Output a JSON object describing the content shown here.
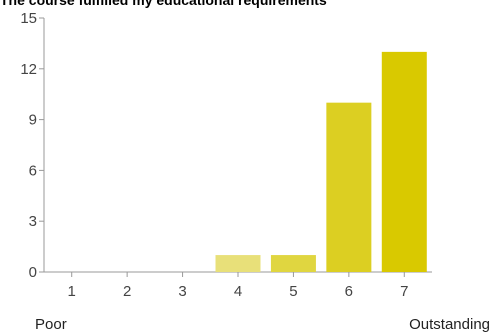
{
  "chart_data": {
    "type": "bar",
    "title": "The course fulfilled my educational requirements",
    "categories": [
      "1",
      "2",
      "3",
      "4",
      "5",
      "6",
      "7"
    ],
    "values": [
      0,
      0,
      0,
      1,
      1,
      10,
      13
    ],
    "ylim": [
      0,
      15
    ],
    "yticks": [
      0,
      3,
      6,
      9,
      12,
      15
    ],
    "grid": false,
    "bar_colors": [
      "#e8e079",
      "#e8e079",
      "#e8e079",
      "#e8e079",
      "#e0d640",
      "#dccf22",
      "#d9c900"
    ],
    "scale_low_label": "Poor",
    "scale_high_label": "Outstanding"
  }
}
